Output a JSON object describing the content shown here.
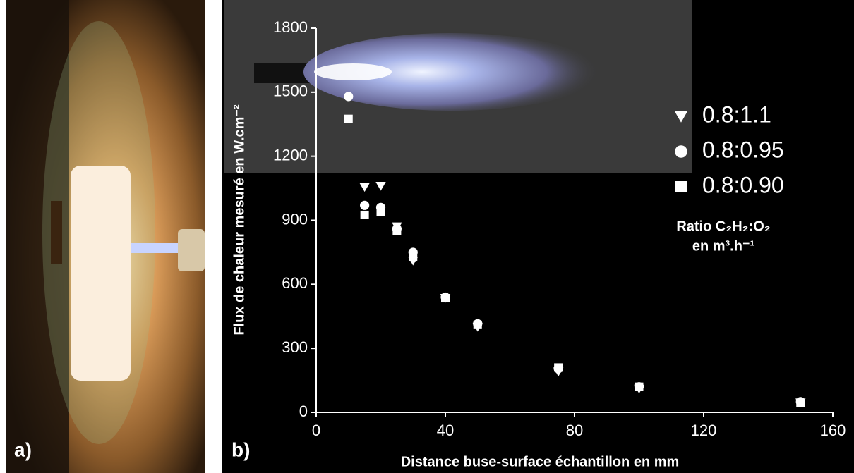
{
  "chart_data": {
    "type": "scatter",
    "panel_labels": [
      "a)",
      "b)"
    ],
    "x_label": "Distance buse-surface échantillon en mm",
    "y_label": "Flux de chaleur mesuré en W.cm⁻²",
    "legend_title": [
      "Ratio C₂H₂:O₂",
      "en m³.h⁻¹"
    ],
    "xlim": [
      0,
      160
    ],
    "xticks": [
      0,
      40,
      80,
      120,
      160
    ],
    "ylim": [
      0,
      1800
    ],
    "yticks": [
      0,
      300,
      600,
      900,
      1200,
      1500,
      1800
    ],
    "series": [
      {
        "name": "0.8:1.1",
        "marker": "triangle-down",
        "color": "#ffffff",
        "x": [
          15,
          20,
          25,
          30,
          40,
          50,
          75,
          100,
          150
        ],
        "values": [
          1055,
          1060,
          870,
          710,
          535,
          400,
          190,
          110,
          45
        ]
      },
      {
        "name": "0.8:0.95",
        "marker": "circle",
        "color": "#ffffff",
        "x": [
          10,
          15,
          20,
          25,
          30,
          40,
          50,
          75,
          100,
          150
        ],
        "values": [
          1480,
          970,
          960,
          860,
          750,
          540,
          415,
          205,
          120,
          50
        ]
      },
      {
        "name": "0.8:0.90",
        "marker": "square",
        "color": "#ffffff",
        "x": [
          10,
          15,
          20,
          25,
          30,
          40,
          50,
          75,
          100,
          150
        ],
        "values": [
          1375,
          925,
          940,
          850,
          730,
          535,
          410,
          210,
          120,
          45
        ]
      }
    ]
  }
}
